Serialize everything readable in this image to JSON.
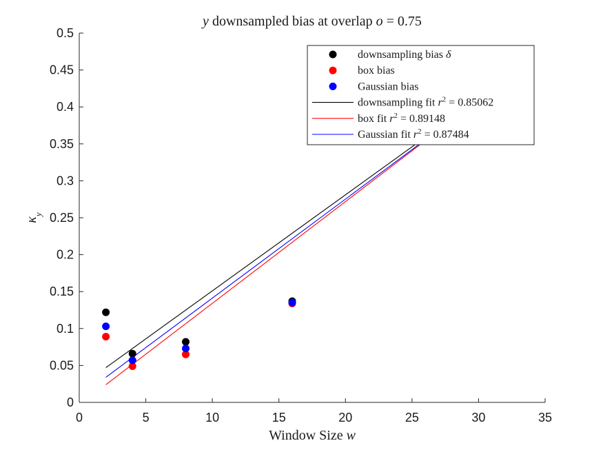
{
  "chart_data": {
    "type": "scatter",
    "title": "y downsampled bias at overlap o = 0.75",
    "title_parts": [
      {
        "text": "y",
        "italic": true
      },
      {
        "text": " downsampled bias at overlap ",
        "italic": false
      },
      {
        "text": "o",
        "italic": true
      },
      {
        "text": " = 0.75",
        "italic": false
      }
    ],
    "xlabel": "Window Size w",
    "xlabel_parts": [
      {
        "text": "Window Size ",
        "italic": false
      },
      {
        "text": "w",
        "italic": true
      }
    ],
    "ylabel": "κy",
    "ylabel_parts": [
      {
        "text": "κ",
        "italic": true
      },
      {
        "text": "y",
        "italic": true,
        "sub": true
      }
    ],
    "xlim": [
      0,
      35
    ],
    "ylim": [
      0,
      0.5
    ],
    "x_ticks": [
      0,
      5,
      10,
      15,
      20,
      25,
      30,
      35
    ],
    "x_tick_labels": [
      "0",
      "5",
      "10",
      "15",
      "20",
      "25",
      "30",
      "35"
    ],
    "y_ticks": [
      0,
      0.05,
      0.1,
      0.15,
      0.2,
      0.25,
      0.3,
      0.35,
      0.4,
      0.45,
      0.5
    ],
    "y_tick_labels": [
      "0",
      "0.05",
      "0.1",
      "0.15",
      "0.2",
      "0.25",
      "0.3",
      "0.35",
      "0.4",
      "0.45",
      "0.5"
    ],
    "grid": false,
    "legend_position": "top-right",
    "series": [
      {
        "name": "downsampling bias δ",
        "kind": "points",
        "color": "#000000",
        "x": [
          2,
          4,
          8,
          16
        ],
        "y": [
          0.122,
          0.066,
          0.082,
          0.137
        ]
      },
      {
        "name": "box bias",
        "kind": "points",
        "color": "#ff0000",
        "x": [
          2,
          4,
          8,
          16
        ],
        "y": [
          0.089,
          0.049,
          0.065,
          0.134
        ]
      },
      {
        "name": "Gaussian bias",
        "kind": "points",
        "color": "#0000ff",
        "x": [
          2,
          4,
          8,
          16
        ],
        "y": [
          0.103,
          0.057,
          0.073,
          0.135
        ]
      },
      {
        "name": "downsampling fit r² = 0.85062",
        "kind": "line",
        "color": "#000000",
        "x": [
          2,
          32
        ],
        "y": [
          0.047,
          0.437
        ]
      },
      {
        "name": "box fit r² = 0.89148",
        "kind": "line",
        "color": "#ff0000",
        "x": [
          2,
          32
        ],
        "y": [
          0.024,
          0.437
        ]
      },
      {
        "name": "Gaussian fit r² = 0.87484",
        "kind": "line",
        "color": "#0000ff",
        "x": [
          2,
          32
        ],
        "y": [
          0.034,
          0.436
        ]
      }
    ],
    "legend_entries": [
      {
        "series": 0,
        "parts": [
          {
            "text": "downsampling bias "
          },
          {
            "text": "δ",
            "italic": true
          }
        ]
      },
      {
        "series": 1,
        "parts": [
          {
            "text": "box bias"
          }
        ]
      },
      {
        "series": 2,
        "parts": [
          {
            "text": "Gaussian bias"
          }
        ]
      },
      {
        "series": 3,
        "parts": [
          {
            "text": "downsampling fit "
          },
          {
            "text": "r",
            "italic": true
          },
          {
            "text": "2",
            "sup": true
          },
          {
            "text": " = 0.85062"
          }
        ]
      },
      {
        "series": 4,
        "parts": [
          {
            "text": "box fit "
          },
          {
            "text": "r",
            "italic": true
          },
          {
            "text": "2",
            "sup": true
          },
          {
            "text": " = 0.89148"
          }
        ]
      },
      {
        "series": 5,
        "parts": [
          {
            "text": "Gaussian fit "
          },
          {
            "text": "r",
            "italic": true
          },
          {
            "text": "2",
            "sup": true
          },
          {
            "text": " = 0.87484"
          }
        ]
      }
    ]
  }
}
